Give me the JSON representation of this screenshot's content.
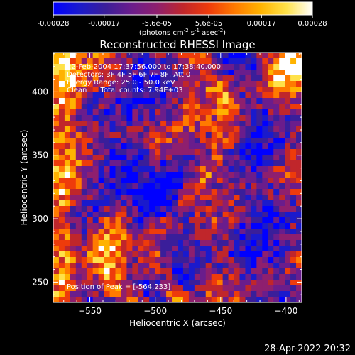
{
  "colorbar": {
    "tick_labels": [
      "-0.00028",
      "-0.00017",
      "-5.6e-05",
      "5.6e-05",
      "0.00017",
      "0.00028"
    ],
    "tick_values": [
      -0.00028,
      -0.00017,
      -5.6e-05,
      5.6e-05,
      0.00017,
      0.00028
    ],
    "range": [
      -0.00028,
      0.00028
    ],
    "units_main": "(photons cm",
    "units_sup1": "-2",
    "units_mid": " s",
    "units_sup2": "-1",
    "units_end": " asec",
    "units_sup3": "-2",
    "units_close": ")",
    "colormap": [
      "#0000ff",
      "#1a1acc",
      "#3a1e9a",
      "#6a1d8c",
      "#8e1f6e",
      "#c0262b",
      "#ee3b0b",
      "#ff7a00",
      "#ffb300",
      "#ffe24a",
      "#ffffff"
    ]
  },
  "chart_data": {
    "type": "heatmap",
    "title": "Reconstructed RHESSI Image",
    "xlabel": "Heliocentric X (arcsec)",
    "ylabel": "Heliocentric Y (arcsec)",
    "xlim": [
      -578,
      -388
    ],
    "ylim": [
      234,
      431
    ],
    "x_ticks": [
      -550,
      -500,
      -450,
      -400
    ],
    "x_tick_labels": [
      "−550",
      "−500",
      "−450",
      "−400"
    ],
    "y_ticks": [
      250,
      300,
      350,
      400
    ],
    "y_tick_labels": [
      "250",
      "300",
      "350",
      "400"
    ],
    "peak_position": [
      -564,
      233
    ],
    "info_lines": [
      "22-Feb-2004 17:37:56.000 to 17:38:40.000",
      "Detectors: 3F 4F 5F 6F 7F 8F, Att 0",
      "Energy Range: 25.0 - 50.0 keV",
      "Clean      Total counts: 7.94E+03"
    ],
    "peak_label": "Position of Peak = [-564,233]",
    "grid": false,
    "colorbar_position": "top"
  },
  "footer": {
    "date": "28-Apr-2022 20:32"
  }
}
